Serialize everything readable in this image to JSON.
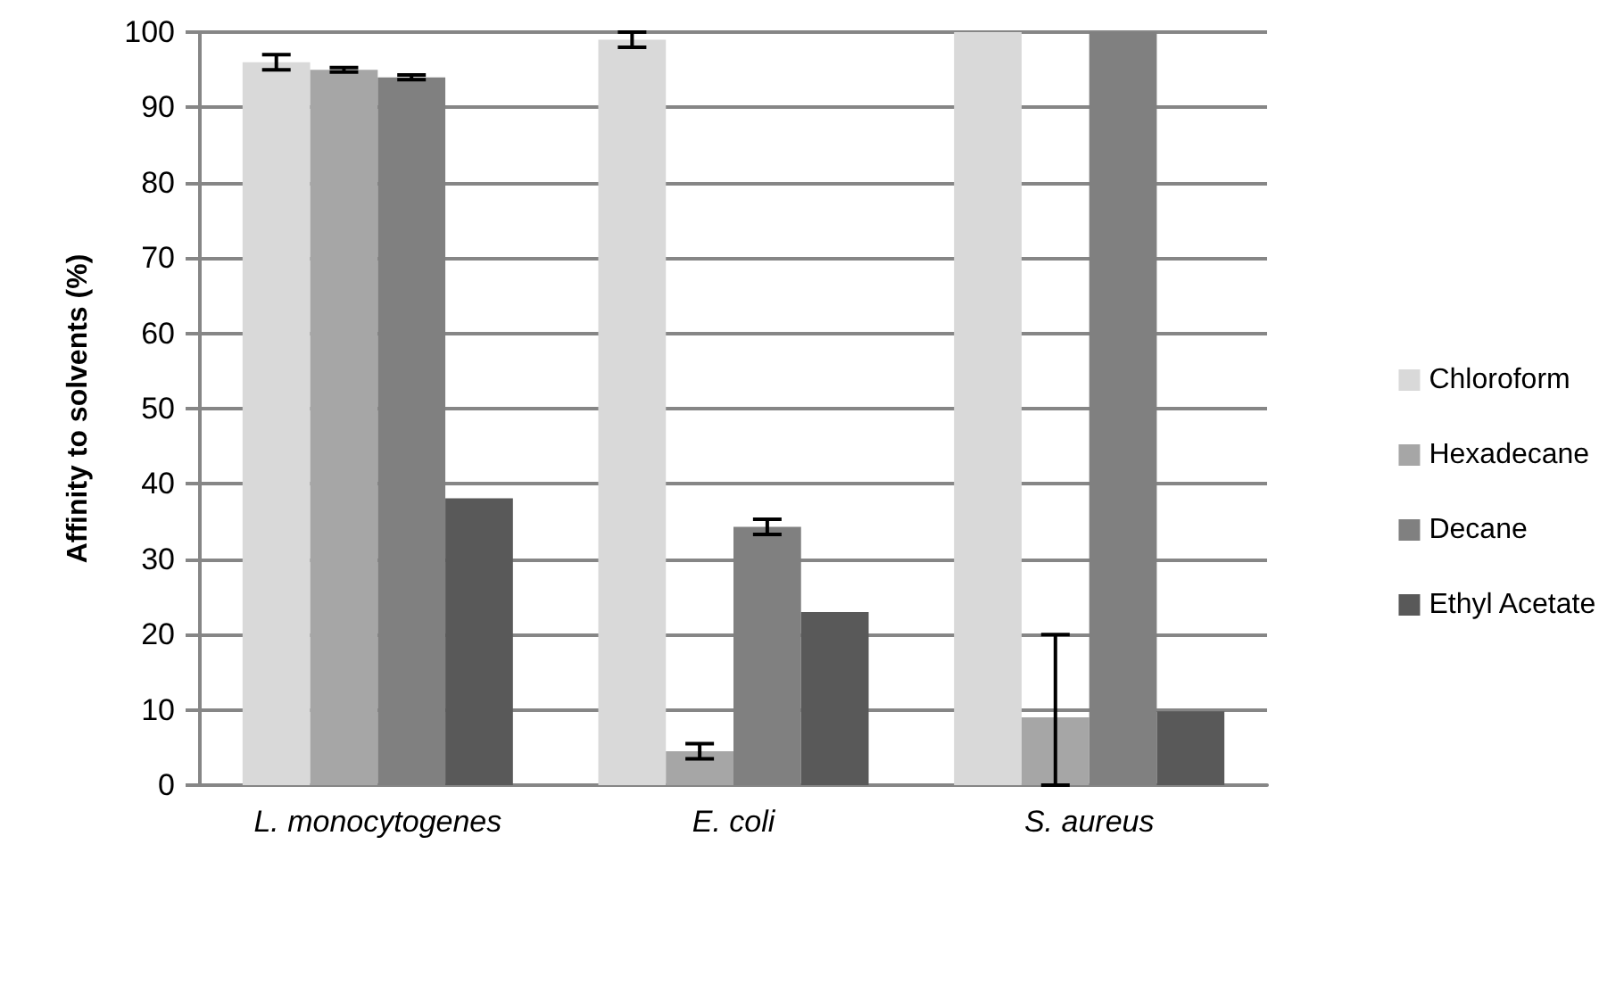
{
  "chart_data": {
    "type": "bar",
    "ylabel": "Affinity to solvents (%)",
    "categories": [
      "L. monocytogenes",
      "E. coli",
      "S. aureus"
    ],
    "series": [
      {
        "name": "Chloroform",
        "color": "#d9d9d9",
        "values": [
          96,
          99,
          100
        ],
        "errors": [
          1,
          1,
          null
        ]
      },
      {
        "name": "Hexadecane",
        "color": "#a6a6a6",
        "values": [
          95,
          4.5,
          9
        ],
        "errors": [
          0.3,
          1,
          [
            0,
            20
          ]
        ]
      },
      {
        "name": "Decane",
        "color": "#808080",
        "values": [
          94,
          34.3,
          100
        ],
        "errors": [
          0.3,
          1,
          null
        ]
      },
      {
        "name": "Ethyl Acetate",
        "color": "#595959",
        "values": [
          38.1,
          23,
          9.8
        ]
      }
    ],
    "ylim": [
      0,
      100
    ],
    "yticks": [
      0,
      10,
      20,
      30,
      40,
      50,
      60,
      70,
      80,
      90,
      100
    ],
    "grid": "y",
    "legend": "right"
  }
}
